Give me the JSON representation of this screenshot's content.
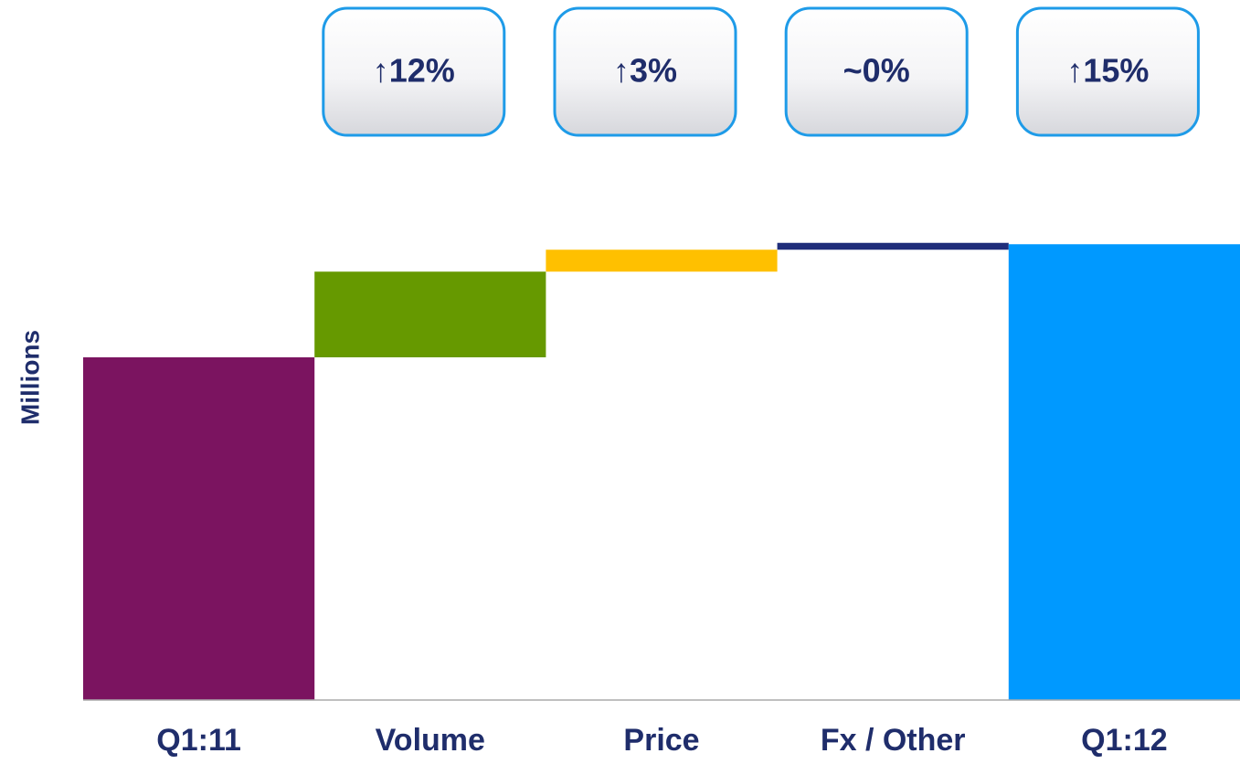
{
  "chart_data": {
    "type": "waterfall",
    "y_label": "Millions",
    "categories": [
      "Q1:11",
      "Volume",
      "Price",
      "Fx / Other",
      "Q1:12"
    ],
    "values": [
      100,
      25,
      6.4,
      2,
      133
    ],
    "measure": [
      "absolute",
      "relative",
      "relative",
      "relative",
      "total"
    ],
    "colors": [
      "#7b1460",
      "#669900",
      "#ffc000",
      "#1f2d7a",
      "#0099ff"
    ],
    "annotations": [
      "↑12%",
      "↑3%",
      "~0%",
      "↑15%"
    ],
    "ylim": [
      0,
      140
    ]
  }
}
